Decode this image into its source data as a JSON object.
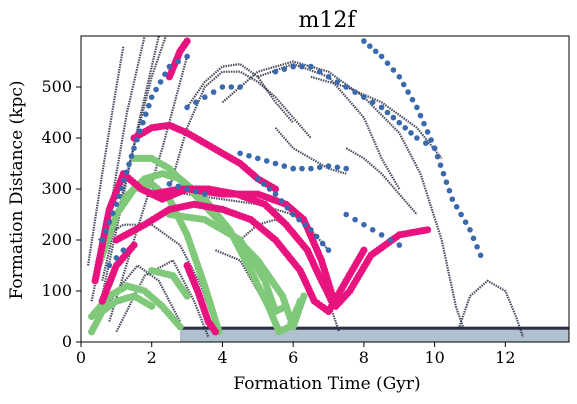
{
  "chart_data": {
    "type": "scatter",
    "title": "m12f",
    "xlabel": "Formation Time (Gyr)",
    "ylabel": "Formation Distance (kpc)",
    "xlim": [
      0,
      13.8
    ],
    "ylim": [
      0,
      600
    ],
    "xticks": [
      0,
      2,
      4,
      6,
      8,
      10,
      12
    ],
    "yticks": [
      0,
      100,
      200,
      300,
      400,
      500
    ],
    "grid": false,
    "legend": "none",
    "colors": {
      "background_stars": "#2b2f45",
      "disk_floor": "#8fa7b8",
      "blue": "#3a6aad",
      "magenta": "#e8137e",
      "green": "#80c97a"
    },
    "series": [
      {
        "key": "background",
        "color": "#2b2f45",
        "tracks": [
          [
            [
              0.3,
              80
            ],
            [
              0.8,
              250
            ],
            [
              1.3,
              450
            ],
            [
              1.8,
              600
            ]
          ],
          [
            [
              0.5,
              60
            ],
            [
              1.0,
              220
            ],
            [
              1.6,
              420
            ],
            [
              2.2,
              600
            ]
          ],
          [
            [
              0.6,
              120
            ],
            [
              1.3,
              330
            ],
            [
              2.0,
              520
            ],
            [
              2.4,
              600
            ]
          ],
          [
            [
              0.2,
              150
            ],
            [
              0.6,
              330
            ],
            [
              1.0,
              500
            ],
            [
              1.2,
              580
            ]
          ],
          [
            [
              0.8,
              40
            ],
            [
              1.5,
              200
            ],
            [
              2.3,
              380
            ],
            [
              3.0,
              560
            ]
          ],
          [
            [
              0.4,
              30
            ],
            [
              1.0,
              100
            ],
            [
              1.6,
              150
            ],
            [
              2.2,
              120
            ],
            [
              2.8,
              40
            ]
          ],
          [
            [
              1.0,
              20
            ],
            [
              1.8,
              130
            ],
            [
              2.6,
              160
            ],
            [
              3.2,
              80
            ],
            [
              3.6,
              10
            ]
          ],
          [
            [
              2.5,
              300
            ],
            [
              3.0,
              420
            ],
            [
              3.5,
              500
            ],
            [
              4.0,
              530
            ],
            [
              4.5,
              530
            ],
            [
              5.0,
              510
            ],
            [
              5.5,
              480
            ],
            [
              6.0,
              440
            ],
            [
              6.5,
              400
            ]
          ],
          [
            [
              3.0,
              460
            ],
            [
              3.5,
              510
            ],
            [
              4.0,
              540
            ],
            [
              4.5,
              545
            ],
            [
              5.0,
              520
            ],
            [
              5.5,
              470
            ],
            [
              6.0,
              430
            ]
          ],
          [
            [
              4.0,
              470
            ],
            [
              5.0,
              530
            ],
            [
              6.0,
              550
            ],
            [
              7.0,
              530
            ],
            [
              8.0,
              480
            ],
            [
              9.0,
              410
            ],
            [
              9.6,
              330
            ],
            [
              10.2,
              200
            ],
            [
              10.6,
              70
            ],
            [
              10.8,
              30
            ]
          ],
          [
            [
              5.0,
              520
            ],
            [
              6.0,
              545
            ],
            [
              7.0,
              520
            ],
            [
              8.0,
              440
            ],
            [
              8.5,
              360
            ],
            [
              9.0,
              300
            ]
          ],
          [
            [
              5.5,
              420
            ],
            [
              6.0,
              380
            ],
            [
              6.5,
              360
            ],
            [
              7.0,
              340
            ],
            [
              7.5,
              330
            ]
          ],
          [
            [
              2.0,
              300
            ],
            [
              3.0,
              290
            ],
            [
              4.0,
              280
            ],
            [
              5.0,
              270
            ],
            [
              6.0,
              250
            ],
            [
              6.5,
              220
            ],
            [
              7.0,
              180
            ]
          ],
          [
            [
              4.5,
              200
            ],
            [
              5.0,
              230
            ],
            [
              5.5,
              240
            ],
            [
              6.0,
              220
            ],
            [
              6.5,
              170
            ],
            [
              7.0,
              80
            ],
            [
              7.3,
              20
            ]
          ],
          [
            [
              3.8,
              180
            ],
            [
              4.5,
              160
            ],
            [
              5.0,
              100
            ],
            [
              5.5,
              40
            ]
          ],
          [
            [
              10.7,
              30
            ],
            [
              11.0,
              90
            ],
            [
              11.5,
              120
            ],
            [
              12.0,
              100
            ],
            [
              12.3,
              50
            ],
            [
              12.5,
              10
            ]
          ],
          [
            [
              7.5,
              380
            ],
            [
              8.0,
              360
            ],
            [
              8.5,
              330
            ],
            [
              9.0,
              290
            ],
            [
              9.5,
              250
            ]
          ],
          [
            [
              0.5,
              200
            ],
            [
              1.2,
              230
            ],
            [
              2.0,
              230
            ],
            [
              2.8,
              190
            ],
            [
              3.4,
              110
            ],
            [
              3.8,
              30
            ]
          ],
          [
            [
              6.5,
              520
            ],
            [
              7.5,
              500
            ],
            [
              8.5,
              470
            ],
            [
              9.5,
              420
            ],
            [
              10.2,
              360
            ]
          ]
        ]
      },
      {
        "key": "green",
        "color": "#80c97a",
        "tracks": [
          [
            [
              0.3,
              50
            ],
            [
              0.8,
              90
            ],
            [
              1.3,
              110
            ],
            [
              1.8,
              100
            ],
            [
              2.3,
              70
            ],
            [
              2.8,
              30
            ]
          ],
          [
            [
              0.5,
              150
            ],
            [
              1.0,
              250
            ],
            [
              1.5,
              300
            ],
            [
              2.0,
              310
            ],
            [
              2.5,
              280
            ],
            [
              3.0,
              210
            ],
            [
              3.5,
              110
            ],
            [
              3.9,
              20
            ]
          ],
          [
            [
              1.2,
              280
            ],
            [
              1.8,
              320
            ],
            [
              2.3,
              330
            ],
            [
              2.8,
              320
            ],
            [
              3.5,
              280
            ],
            [
              4.2,
              220
            ],
            [
              4.8,
              140
            ],
            [
              5.3,
              70
            ],
            [
              5.6,
              20
            ],
            [
              5.9,
              30
            ],
            [
              6.2,
              80
            ]
          ],
          [
            [
              1.5,
              360
            ],
            [
              2.0,
              360
            ],
            [
              2.5,
              340
            ],
            [
              3.2,
              290
            ],
            [
              4.0,
              230
            ],
            [
              5.0,
              160
            ],
            [
              5.7,
              90
            ],
            [
              6.0,
              30
            ],
            [
              6.3,
              90
            ]
          ],
          [
            [
              2.5,
              250
            ],
            [
              3.5,
              240
            ],
            [
              4.5,
              200
            ],
            [
              5.2,
              120
            ],
            [
              5.5,
              60
            ],
            [
              5.8,
              70
            ]
          ],
          [
            [
              0.3,
              20
            ],
            [
              0.6,
              60
            ],
            [
              1.0,
              80
            ],
            [
              1.5,
              90
            ],
            [
              2.0,
              70
            ]
          ],
          [
            [
              2.0,
              140
            ],
            [
              2.6,
              130
            ],
            [
              3.0,
              90
            ]
          ]
        ]
      },
      {
        "key": "magenta",
        "color": "#e8137e",
        "tracks": [
          [
            [
              0.4,
              120
            ],
            [
              0.8,
              260
            ],
            [
              1.2,
              330
            ],
            [
              1.7,
              300
            ],
            [
              2.3,
              280
            ],
            [
              3.0,
              300
            ],
            [
              4.0,
              290
            ],
            [
              5.0,
              290
            ],
            [
              5.8,
              270
            ],
            [
              6.3,
              240
            ],
            [
              6.8,
              160
            ],
            [
              7.2,
              70
            ],
            [
              7.6,
              100
            ],
            [
              8.2,
              170
            ],
            [
              9.0,
              210
            ],
            [
              9.8,
              220
            ]
          ],
          [
            [
              1.0,
              200
            ],
            [
              1.8,
              230
            ],
            [
              2.5,
              260
            ],
            [
              3.2,
              270
            ],
            [
              4.0,
              260
            ],
            [
              4.8,
              240
            ],
            [
              5.5,
              200
            ],
            [
              6.2,
              140
            ],
            [
              6.6,
              80
            ],
            [
              7.0,
              60
            ],
            [
              7.5,
              120
            ],
            [
              8.0,
              180
            ]
          ],
          [
            [
              1.5,
              400
            ],
            [
              2.0,
              420
            ],
            [
              2.5,
              425
            ],
            [
              3.0,
              410
            ],
            [
              3.5,
              390
            ],
            [
              4.0,
              370
            ],
            [
              4.5,
              350
            ],
            [
              5.0,
              320
            ],
            [
              5.5,
              300
            ]
          ],
          [
            [
              2.0,
              290
            ],
            [
              2.8,
              300
            ],
            [
              3.6,
              300
            ],
            [
              4.4,
              290
            ],
            [
              5.2,
              270
            ],
            [
              5.8,
              230
            ],
            [
              6.4,
              180
            ],
            [
              6.8,
              120
            ],
            [
              7.1,
              80
            ]
          ],
          [
            [
              2.5,
              520
            ],
            [
              2.8,
              570
            ],
            [
              3.0,
              590
            ]
          ],
          [
            [
              3.0,
              150
            ],
            [
              3.3,
              100
            ],
            [
              3.6,
              40
            ],
            [
              3.8,
              20
            ]
          ],
          [
            [
              0.6,
              80
            ],
            [
              1.0,
              150
            ],
            [
              1.5,
              190
            ]
          ]
        ]
      },
      {
        "key": "blue",
        "color": "#3a6aad",
        "tracks": [
          [
            [
              0.6,
              200
            ],
            [
              1.0,
              270
            ],
            [
              1.5,
              380
            ],
            [
              2.0,
              480
            ],
            [
              2.5,
              540
            ],
            [
              3.0,
              560
            ]
          ],
          [
            [
              3.0,
              460
            ],
            [
              3.5,
              480
            ],
            [
              4.0,
              500
            ],
            [
              4.5,
              500
            ]
          ],
          [
            [
              4.5,
              370
            ],
            [
              5.0,
              360
            ],
            [
              5.5,
              350
            ],
            [
              6.0,
              340
            ]
          ],
          [
            [
              5.5,
              530
            ],
            [
              6.0,
              540
            ],
            [
              6.5,
              540
            ],
            [
              7.0,
              520
            ],
            [
              7.5,
              500
            ],
            [
              8.0,
              480
            ],
            [
              8.5,
              460
            ],
            [
              9.0,
              430
            ],
            [
              9.5,
              400
            ],
            [
              10.0,
              380
            ]
          ],
          [
            [
              5.0,
              320
            ],
            [
              5.5,
              290
            ],
            [
              6.0,
              250
            ],
            [
              6.5,
              220
            ],
            [
              7.0,
              180
            ]
          ],
          [
            [
              7.5,
              250
            ],
            [
              8.0,
              230
            ],
            [
              8.5,
              210
            ],
            [
              9.0,
              190
            ]
          ],
          [
            [
              8.0,
              590
            ],
            [
              8.5,
              560
            ],
            [
              9.0,
              520
            ],
            [
              9.5,
              460
            ],
            [
              10.0,
              380
            ],
            [
              10.5,
              280
            ],
            [
              11.0,
              220
            ],
            [
              11.3,
              170
            ]
          ],
          [
            [
              6.0,
              340
            ],
            [
              6.5,
              340
            ],
            [
              7.0,
              345
            ],
            [
              7.5,
              340
            ]
          ],
          [
            [
              2.5,
              310
            ],
            [
              3.0,
              300
            ],
            [
              3.5,
              290
            ]
          ],
          [
            [
              0.8,
              150
            ],
            [
              1.2,
              180
            ]
          ]
        ]
      }
    ]
  }
}
